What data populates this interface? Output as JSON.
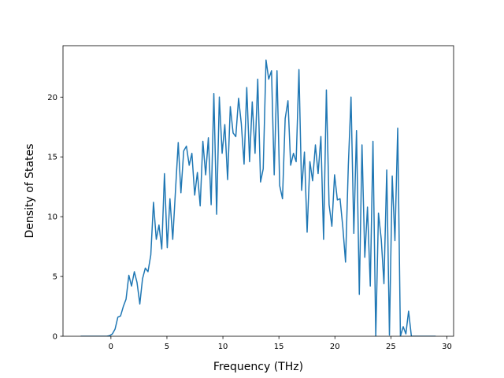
{
  "chart_data": {
    "type": "line",
    "xlabel": "Frequency (THz)",
    "ylabel": "Density of States",
    "xlim": [
      -4.28,
      30.6
    ],
    "ylim": [
      0,
      24.3
    ],
    "xticks": [
      0,
      5,
      10,
      15,
      20,
      25,
      30
    ],
    "yticks": [
      0,
      5,
      10,
      15,
      20
    ],
    "grid": false,
    "series": [
      {
        "color": "#1f77b4",
        "x": [
          -2.7,
          -0.37,
          -0.12,
          0.13,
          0.37,
          0.62,
          0.86,
          1.11,
          1.35,
          1.6,
          1.84,
          2.09,
          2.33,
          2.58,
          2.82,
          3.07,
          3.31,
          3.56,
          3.8,
          4.05,
          4.29,
          4.54,
          4.78,
          5.03,
          5.27,
          5.52,
          5.76,
          6.01,
          6.25,
          6.5,
          6.74,
          6.99,
          7.23,
          7.48,
          7.72,
          7.97,
          8.21,
          8.46,
          8.7,
          8.95,
          9.19,
          9.44,
          9.68,
          9.93,
          10.17,
          10.42,
          10.66,
          10.91,
          11.15,
          11.4,
          11.64,
          11.89,
          12.13,
          12.38,
          12.62,
          12.87,
          13.11,
          13.36,
          13.6,
          13.85,
          14.09,
          14.34,
          14.58,
          14.83,
          15.07,
          15.32,
          15.56,
          15.81,
          16.05,
          16.3,
          16.54,
          16.79,
          17.03,
          17.28,
          17.52,
          17.77,
          18.01,
          18.26,
          18.5,
          18.75,
          18.99,
          19.24,
          19.48,
          19.73,
          19.97,
          20.22,
          20.46,
          20.71,
          20.95,
          21.2,
          21.44,
          21.69,
          21.93,
          22.18,
          22.42,
          22.67,
          22.91,
          23.16,
          23.4,
          23.65,
          23.89,
          24.14,
          24.38,
          24.63,
          24.87,
          25.12,
          25.36,
          25.61,
          25.85,
          26.1,
          26.34,
          26.58,
          26.83,
          29
        ],
        "values": [
          0,
          0,
          0.05,
          0.2,
          0.6,
          1.6,
          1.7,
          2.5,
          3.1,
          5.1,
          4.2,
          5.4,
          4.5,
          2.7,
          4.8,
          5.7,
          5.4,
          6.8,
          11.2,
          8.1,
          9.3,
          7.3,
          13.6,
          7.4,
          11.5,
          8.1,
          12.1,
          16.2,
          12.0,
          15.5,
          15.9,
          14.3,
          15.3,
          11.8,
          13.7,
          10.9,
          16.3,
          13.5,
          16.6,
          11.0,
          20.3,
          10.2,
          20.0,
          15.3,
          17.7,
          13.1,
          19.2,
          17.0,
          16.7,
          19.9,
          17.8,
          14.4,
          20.8,
          14.6,
          19.6,
          15.3,
          21.5,
          12.9,
          14.0,
          23.1,
          21.5,
          22.2,
          13.5,
          22.2,
          12.6,
          11.5,
          18.2,
          19.7,
          14.3,
          15.3,
          14.6,
          22.3,
          12.2,
          15.4,
          8.7,
          14.6,
          13.0,
          16.0,
          13.6,
          16.7,
          8.1,
          20.6,
          11.0,
          9.2,
          13.5,
          11.4,
          11.5,
          9.1,
          6.2,
          14.3,
          20.0,
          8.6,
          17.2,
          3.5,
          16.0,
          6.6,
          10.8,
          4.2,
          16.3,
          0,
          10.3,
          8.1,
          4.4,
          13.9,
          0.1,
          13.4,
          8.0,
          17.4,
          0,
          0.8,
          0.2,
          2.1,
          0,
          0
        ]
      }
    ]
  }
}
